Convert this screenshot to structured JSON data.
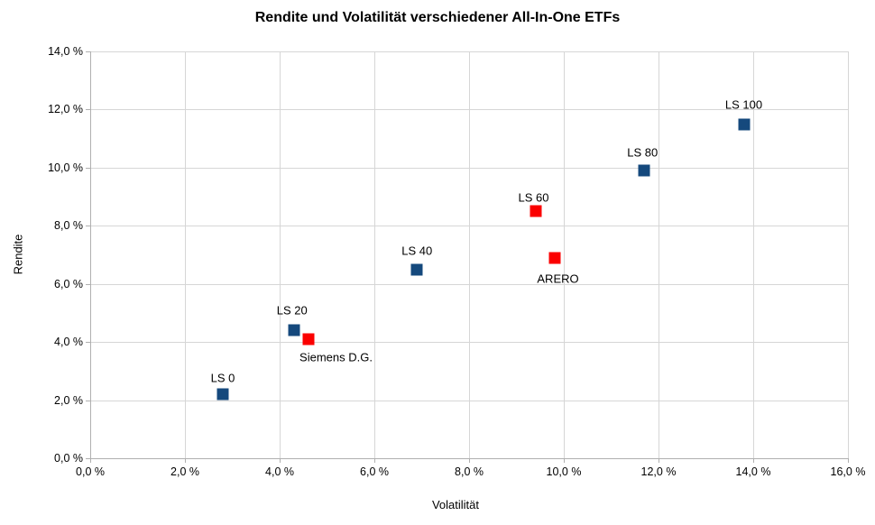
{
  "chart_data": {
    "type": "scatter",
    "title": "Rendite und Volatilität verschiedener All-In-One ETFs",
    "xlabel": "Volatilität",
    "ylabel": "Rendite",
    "xlim": [
      0,
      16
    ],
    "ylim": [
      0,
      14
    ],
    "x_tick_labels": [
      "0,0 %",
      "2,0 %",
      "4,0 %",
      "6,0 %",
      "8,0 %",
      "10,0 %",
      "12,0 %",
      "14,0 %",
      "16,0 %"
    ],
    "y_tick_labels": [
      "0,0 %",
      "2,0 %",
      "4,0 %",
      "6,0 %",
      "8,0 %",
      "10,0 %",
      "12,0 %",
      "14,0 %"
    ],
    "x_tick_values": [
      0,
      2,
      4,
      6,
      8,
      10,
      12,
      14,
      16
    ],
    "y_tick_values": [
      0,
      2,
      4,
      6,
      8,
      10,
      12,
      14
    ],
    "grid": true,
    "legend": "none",
    "marker": "square",
    "series": [
      {
        "name": "blue-squares",
        "color": "#15497d",
        "points": [
          {
            "label": "LS 0",
            "x": 2.8,
            "y": 2.2,
            "label_offset": [
              0,
              -18
            ]
          },
          {
            "label": "LS 20",
            "x": 4.3,
            "y": 4.4,
            "label_offset": [
              -2,
              -22
            ]
          },
          {
            "label": "LS 40",
            "x": 6.9,
            "y": 6.5,
            "label_offset": [
              0,
              -21
            ]
          },
          {
            "label": "LS 80",
            "x": 11.7,
            "y": 9.9,
            "label_offset": [
              -2,
              -20
            ]
          },
          {
            "label": "LS 100",
            "x": 13.8,
            "y": 11.5,
            "label_offset": [
              0,
              -22
            ]
          }
        ]
      },
      {
        "name": "red-squares",
        "color": "#fb0000",
        "points": [
          {
            "label": "Siemens D.G.",
            "x": 4.6,
            "y": 4.1,
            "label_offset": [
              31,
              20
            ]
          },
          {
            "label": "LS 60",
            "x": 9.4,
            "y": 8.5,
            "label_offset": [
              -2,
              -15
            ]
          },
          {
            "label": "ARERO",
            "x": 9.8,
            "y": 6.9,
            "label_offset": [
              4,
              23
            ]
          }
        ]
      }
    ]
  }
}
